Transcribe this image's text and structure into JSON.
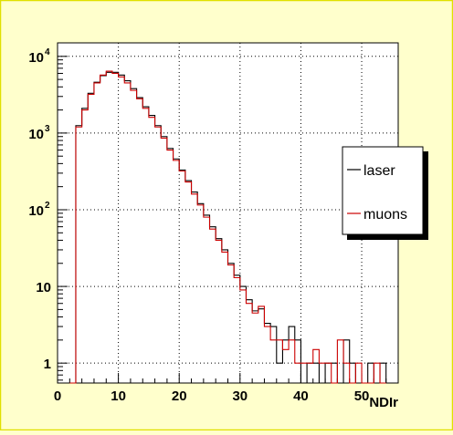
{
  "chart_data": {
    "type": "step-histogram",
    "title": "",
    "xlabel": "NDIr",
    "ylabel": "",
    "x_scale": "linear",
    "y_scale": "log",
    "xlim": [
      0,
      56
    ],
    "ylim": [
      0.55,
      15000
    ],
    "grid": true,
    "x_ticks": [
      {
        "value": 0,
        "label": "0"
      },
      {
        "value": 10,
        "label": "10"
      },
      {
        "value": 20,
        "label": "20"
      },
      {
        "value": 30,
        "label": "30"
      },
      {
        "value": 40,
        "label": "40"
      },
      {
        "value": 50,
        "label": "50"
      }
    ],
    "y_ticks": [
      {
        "value": 1,
        "label": "1",
        "sup": ""
      },
      {
        "value": 10,
        "label": "10",
        "sup": ""
      },
      {
        "value": 100,
        "label": "10",
        "sup": "2"
      },
      {
        "value": 1000,
        "label": "10",
        "sup": "3"
      },
      {
        "value": 10000,
        "label": "10",
        "sup": "4"
      }
    ],
    "legend": {
      "position": "right",
      "entries": [
        "laser",
        "muons"
      ]
    },
    "bin_edges": [
      2,
      3,
      4,
      5,
      6,
      7,
      8,
      9,
      10,
      11,
      12,
      13,
      14,
      15,
      16,
      17,
      18,
      19,
      20,
      21,
      22,
      23,
      24,
      25,
      26,
      27,
      28,
      29,
      30,
      31,
      32,
      33,
      34,
      35,
      36,
      37,
      38,
      39,
      40,
      41,
      42,
      43,
      44,
      45,
      46,
      47,
      48,
      49,
      50,
      51,
      52,
      53,
      54
    ],
    "series": [
      {
        "name": "laser",
        "color": "#000000",
        "values": [
          0.001,
          1250,
          2100,
          3300,
          4600,
          5600,
          6200,
          6200,
          5700,
          4800,
          3800,
          2900,
          2200,
          1700,
          1250,
          900,
          630,
          460,
          330,
          240,
          170,
          120,
          85,
          60,
          42,
          30,
          20,
          14,
          10,
          6.7,
          4.8,
          5.1,
          3.3,
          3.0,
          1.0,
          2.0,
          3.0,
          2.0,
          0.0,
          1.0,
          1.0,
          0.0,
          1.0,
          1.0,
          0.0,
          2.0,
          1.0,
          0.0,
          0.0,
          1.0,
          0.0,
          1.0
        ]
      },
      {
        "name": "muons",
        "color": "#cc0000",
        "values": [
          0.001,
          1200,
          2000,
          3200,
          4500,
          5700,
          6400,
          6000,
          5400,
          4500,
          3600,
          2800,
          2100,
          1600,
          1200,
          860,
          600,
          440,
          320,
          230,
          160,
          115,
          80,
          56,
          40,
          28,
          19,
          13,
          9.0,
          6.0,
          4.5,
          5.5,
          3.0,
          2.0,
          2.0,
          1.5,
          2.0,
          1.0,
          1.0,
          1.0,
          1.5,
          1.0,
          1.0,
          0.0,
          2.0,
          1.0,
          0.0,
          1.0,
          0.0,
          0.0,
          1.0,
          0.0
        ]
      }
    ]
  }
}
